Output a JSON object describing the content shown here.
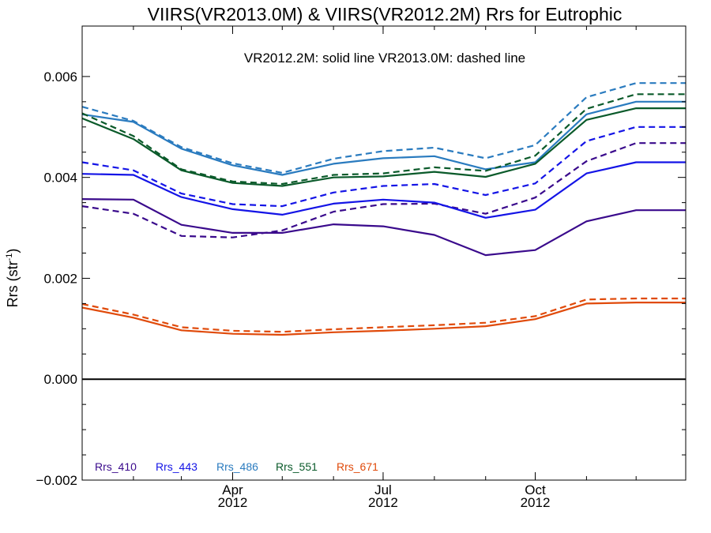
{
  "chart_data": {
    "type": "line",
    "title": "VIIRS(VR2013.0M) & VIIRS(VR2012.2M)  Rrs for Eutrophic",
    "subtitle": "VR2012.2M: solid line   VR2013.0M: dashed line",
    "ylabel": "Rrs (str",
    "ylabel_sup": "-1",
    "ylabel_close": ")",
    "xlim": [
      "2012-01-01",
      "2012-12-31"
    ],
    "ylim": [
      -0.002,
      0.007
    ],
    "yticks": [
      {
        "value": -0.002,
        "label": "−0.002"
      },
      {
        "value": 0.0,
        "label": "0.000"
      },
      {
        "value": 0.002,
        "label": "0.002"
      },
      {
        "value": 0.004,
        "label": "0.004"
      },
      {
        "value": 0.006,
        "label": "0.006"
      }
    ],
    "xticks": [
      {
        "date": "2012-04-01",
        "label": "Apr",
        "year": "2012"
      },
      {
        "date": "2012-07-01",
        "label": "Jul",
        "year": "2012"
      },
      {
        "date": "2012-10-01",
        "label": "Oct",
        "year": "2012"
      }
    ],
    "zero_line": 0.0,
    "grid": false,
    "legend_position": "bottom-left",
    "x": [
      "2012-01-01",
      "2012-02-01",
      "2012-03-01",
      "2012-04-01",
      "2012-05-01",
      "2012-06-01",
      "2012-07-01",
      "2012-08-01",
      "2012-09-01",
      "2012-10-01",
      "2012-11-01",
      "2012-12-01",
      "2012-12-31"
    ],
    "series": [
      {
        "name": "Rrs_410",
        "color": "#3a0a8c",
        "solid": [
          0.00357,
          0.00356,
          0.00306,
          0.0029,
          0.0029,
          0.00307,
          0.00303,
          0.00286,
          0.00246,
          0.00256,
          0.00313,
          0.00335,
          0.00335
        ],
        "dashed": [
          0.00343,
          0.00328,
          0.00284,
          0.00281,
          0.00295,
          0.00332,
          0.00347,
          0.00348,
          0.00328,
          0.0036,
          0.00432,
          0.00468,
          0.00468
        ]
      },
      {
        "name": "Rrs_443",
        "color": "#1414e6",
        "solid": [
          0.00407,
          0.00405,
          0.00361,
          0.00337,
          0.00326,
          0.00348,
          0.00356,
          0.0035,
          0.0032,
          0.00336,
          0.00408,
          0.0043,
          0.0043
        ],
        "dashed": [
          0.0043,
          0.00414,
          0.00368,
          0.00347,
          0.00343,
          0.0037,
          0.00383,
          0.00387,
          0.00365,
          0.00388,
          0.00472,
          0.005,
          0.005
        ]
      },
      {
        "name": "Rrs_486",
        "color": "#2a7bbf",
        "solid": [
          0.00525,
          0.0051,
          0.00457,
          0.00424,
          0.00405,
          0.00427,
          0.00438,
          0.00442,
          0.00416,
          0.0043,
          0.00525,
          0.0055,
          0.0055
        ],
        "dashed": [
          0.0054,
          0.00512,
          0.0046,
          0.00428,
          0.00409,
          0.00437,
          0.00452,
          0.00459,
          0.00438,
          0.00464,
          0.00559,
          0.00587,
          0.00587
        ]
      },
      {
        "name": "Rrs_551",
        "color": "#0a5a2a",
        "solid": [
          0.00517,
          0.00476,
          0.00414,
          0.00389,
          0.00383,
          0.004,
          0.00402,
          0.00411,
          0.00401,
          0.00427,
          0.00514,
          0.00537,
          0.00537
        ],
        "dashed": [
          0.00527,
          0.00482,
          0.00416,
          0.00392,
          0.00387,
          0.00405,
          0.00408,
          0.0042,
          0.00413,
          0.00443,
          0.00536,
          0.00565,
          0.00565
        ]
      },
      {
        "name": "Rrs_671",
        "color": "#e04a0a",
        "solid": [
          0.00142,
          0.00122,
          0.00097,
          0.0009,
          0.00088,
          0.00093,
          0.00096,
          0.001,
          0.00105,
          0.00119,
          0.0015,
          0.00152,
          0.00152
        ],
        "dashed": [
          0.00149,
          0.00128,
          0.00103,
          0.00096,
          0.00094,
          0.00099,
          0.00103,
          0.00107,
          0.00112,
          0.00125,
          0.00158,
          0.0016,
          0.0016
        ]
      }
    ]
  }
}
